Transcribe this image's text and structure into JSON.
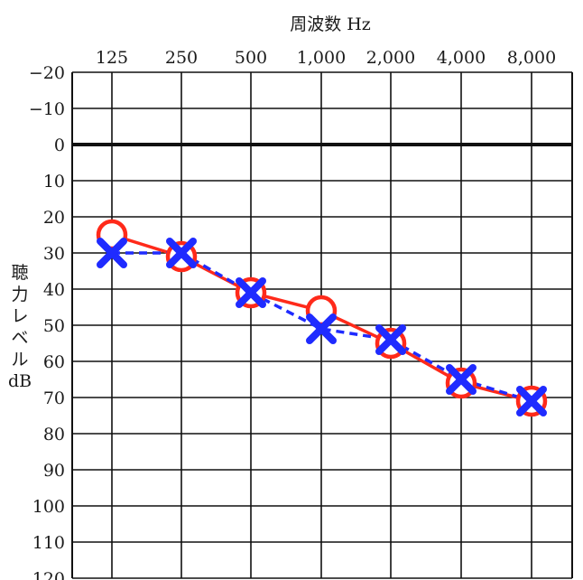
{
  "chart_data": {
    "type": "line",
    "title": "周波数 Hz",
    "xlabel": "周波数 Hz",
    "ylabel": "聴力レベル dB",
    "ylabel_chars": [
      "聴",
      "力",
      "レ",
      "ベ",
      "ル",
      "dB"
    ],
    "categories": [
      "125",
      "250",
      "500",
      "1,000",
      "2,000",
      "4,000",
      "8,000"
    ],
    "y_ticks": [
      "−20",
      "−10",
      "0",
      "10",
      "20",
      "30",
      "40",
      "50",
      "60",
      "70",
      "80",
      "90",
      "100",
      "110",
      "120"
    ],
    "y_tick_values": [
      -20,
      -10,
      0,
      10,
      20,
      30,
      40,
      50,
      60,
      70,
      80,
      90,
      100,
      110,
      120
    ],
    "ylim": [
      -20,
      120
    ],
    "y_inverted": true,
    "x_axis_position": "top",
    "grid": true,
    "series": [
      {
        "marker": "circle",
        "line_style": "solid",
        "color": "#ff2a1a",
        "values": [
          25,
          31,
          41,
          46,
          55,
          66,
          71
        ]
      },
      {
        "marker": "cross",
        "line_style": "dashed",
        "color": "#1f2bff",
        "values": [
          30,
          30,
          41,
          51,
          54,
          65,
          71
        ]
      }
    ]
  }
}
